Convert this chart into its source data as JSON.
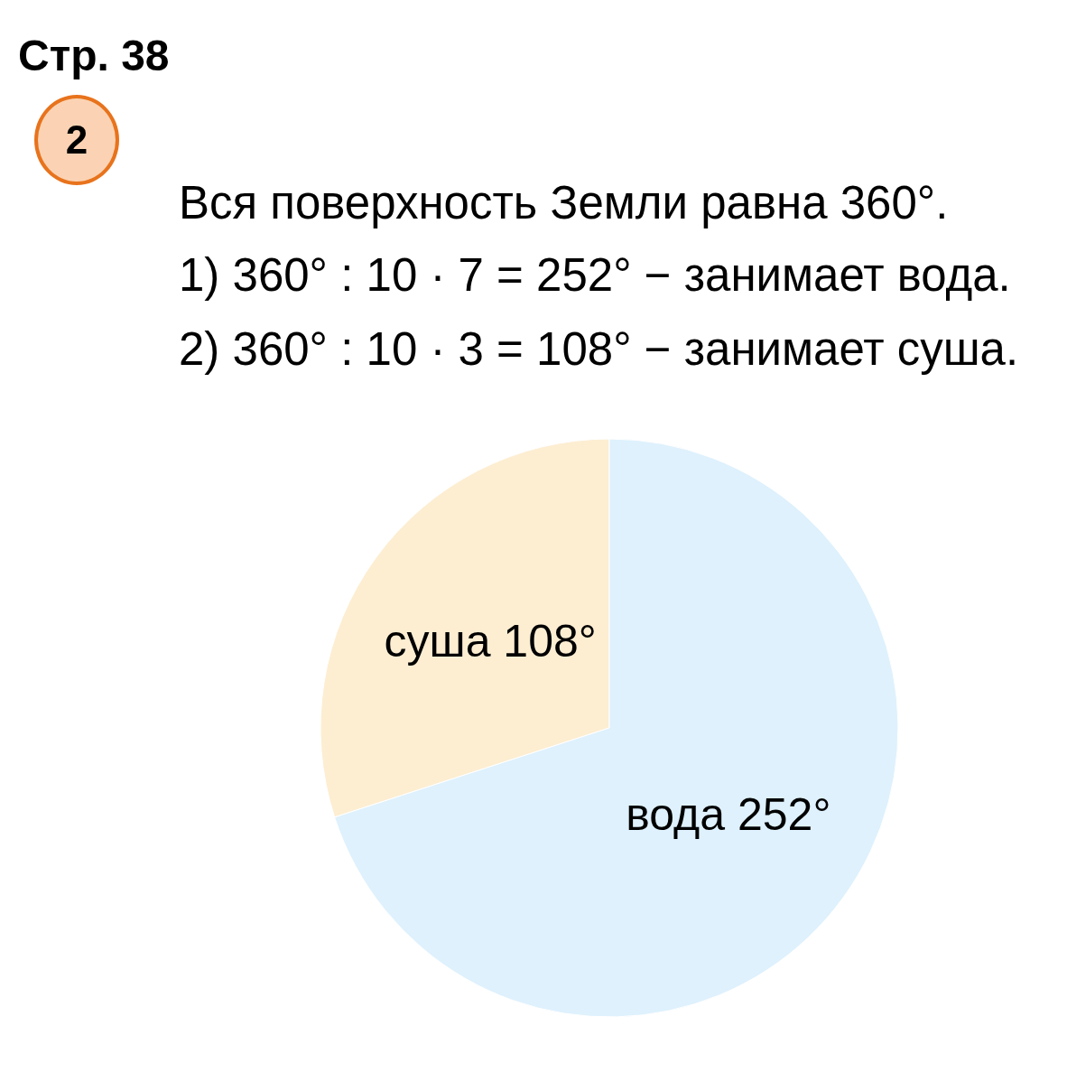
{
  "chart_data": {
    "type": "pie",
    "title": "Стр. 38",
    "annotations": [
      "2",
      "Вся поверхность Земли равна 360°.",
      "1) 360° : 10 · 7 = 252° − занимает вода.",
      "2) 360° : 10 · 3 = 108° − занимает суша."
    ],
    "categories": [
      "суша",
      "вода"
    ],
    "values": [
      108,
      252
    ],
    "colors": [
      "#fdeed2",
      "#def1fd"
    ],
    "value_labels": [
      "108°",
      "252°"
    ]
  }
}
